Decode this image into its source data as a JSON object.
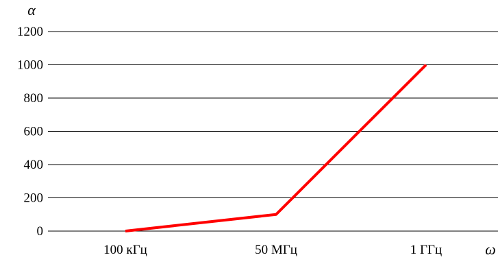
{
  "chart_data": {
    "type": "line",
    "title": "",
    "xlabel": "ω",
    "ylabel": "α",
    "categories": [
      "100 кГц",
      "50 МГц",
      "1 ГГц"
    ],
    "series": [
      {
        "values": [
          0,
          100,
          1000
        ],
        "color": "#ff0000"
      }
    ],
    "ylim": [
      0,
      1200
    ],
    "yticks": [
      "0",
      "200",
      "400",
      "600",
      "800",
      "1000",
      "1200"
    ],
    "grid": "horizontal",
    "legend": "none"
  }
}
